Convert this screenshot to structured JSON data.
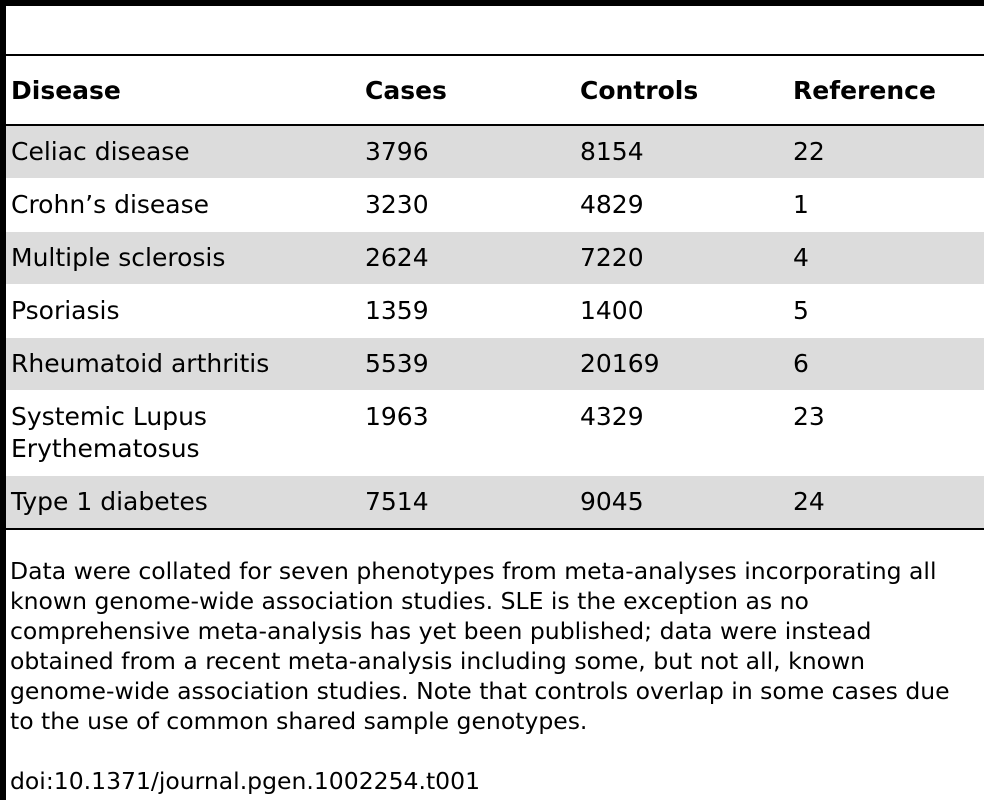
{
  "table": {
    "headers": [
      "Disease",
      "Cases",
      "Controls",
      "Reference"
    ],
    "rows": [
      {
        "disease": "Celiac disease",
        "cases": "3796",
        "controls": "8154",
        "reference": "22",
        "shaded": true
      },
      {
        "disease": "Crohn’s disease",
        "cases": "3230",
        "controls": "4829",
        "reference": "1",
        "shaded": false
      },
      {
        "disease": "Multiple sclerosis",
        "cases": "2624",
        "controls": "7220",
        "reference": "4",
        "shaded": true
      },
      {
        "disease": "Psoriasis",
        "cases": "1359",
        "controls": "1400",
        "reference": "5",
        "shaded": false
      },
      {
        "disease": "Rheumatoid arthritis",
        "cases": "5539",
        "controls": "20169",
        "reference": "6",
        "shaded": true
      },
      {
        "disease_lines": [
          "Systemic Lupus",
          "Erythematosus"
        ],
        "cases": "1963",
        "controls": "4329",
        "reference": "23",
        "shaded": false
      },
      {
        "disease": "Type 1 diabetes",
        "cases": "7514",
        "controls": "9045",
        "reference": "24",
        "shaded": true
      }
    ]
  },
  "footnote": {
    "lines": [
      "Data were collated for seven phenotypes from meta-analyses incorporating all",
      "known genome-wide association studies. SLE is the exception as no",
      "comprehensive meta-analysis has yet been published; data were instead",
      "obtained from a recent meta-analysis including some, but not all, known",
      "genome-wide association studies. Note that controls overlap in some cases due",
      "to the use of common shared sample genotypes."
    ],
    "doi": "doi:10.1371/journal.pgen.1002254.t001"
  },
  "colors": {
    "shaded_row": "#dcdcdc",
    "rule": "#000000"
  }
}
